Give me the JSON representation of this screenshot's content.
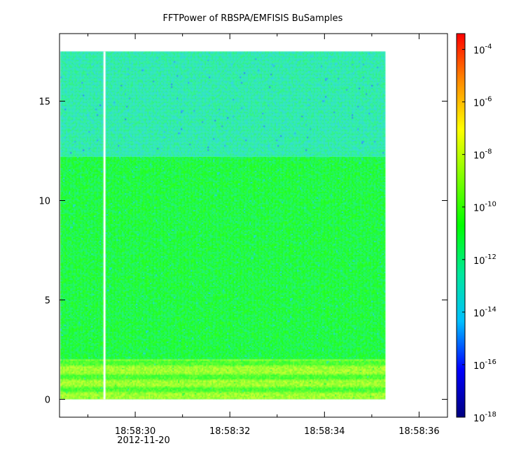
{
  "chart_data": {
    "type": "heatmap",
    "title": "FFTPower of RBSPA/EMFISIS  BuSamples",
    "xlabel": "",
    "ylabel": "",
    "x_ticks": [
      {
        "value": 29,
        "label": "18:58:30"
      },
      {
        "value": 31,
        "label": "18:58:32"
      },
      {
        "value": 33,
        "label": "18:58:34"
      },
      {
        "value": 35,
        "label": "18:58:36"
      }
    ],
    "x_minor_ticks": [
      28,
      30,
      32,
      34
    ],
    "x_date_label": "2012-11-20",
    "xlim": [
      27.4,
      35.6
    ],
    "ylim": [
      -0.9,
      18.4
    ],
    "y_ticks": [
      0,
      5,
      10,
      15
    ],
    "data_extent": {
      "x": [
        27.42,
        34.28
      ],
      "y": [
        0,
        17.5
      ]
    },
    "gap": {
      "x": 28.35
    },
    "bands": [
      {
        "y0": 12.2,
        "y1": 17.5,
        "level": -12.6
      },
      {
        "y0": 2.0,
        "y1": 12.2,
        "level": -11.2
      },
      {
        "y0": 0.0,
        "y1": 2.0,
        "level": -9.3
      }
    ],
    "colorbar": {
      "scale": "log",
      "zlim": [
        -18,
        -3.4
      ],
      "ticks": [
        {
          "exp": -4,
          "base": "10",
          "power": "-4"
        },
        {
          "exp": -6,
          "base": "10",
          "power": "-6"
        },
        {
          "exp": -8,
          "base": "10",
          "power": "-8"
        },
        {
          "exp": -10,
          "base": "10",
          "power": "-10"
        },
        {
          "exp": -12,
          "base": "10",
          "power": "-12"
        },
        {
          "exp": -14,
          "base": "10",
          "power": "-14"
        },
        {
          "exp": -16,
          "base": "10",
          "power": "-16"
        },
        {
          "exp": -18,
          "base": "10",
          "power": "-18"
        }
      ],
      "colormap": [
        "#00007f",
        "#0000ff",
        "#00bfff",
        "#00e89a",
        "#00ff00",
        "#7fff00",
        "#ffff00",
        "#ff8c00",
        "#ff0000"
      ]
    }
  }
}
